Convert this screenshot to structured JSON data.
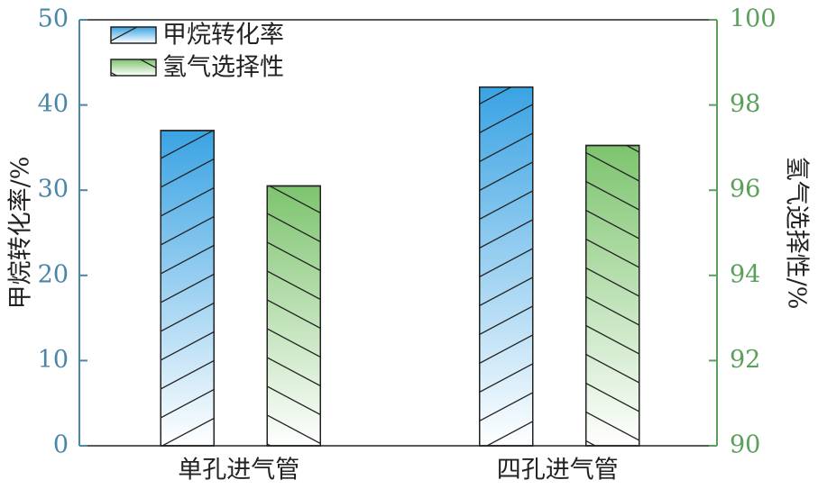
{
  "chart_data": {
    "type": "bar",
    "categories": [
      "单孔进气管",
      "四孔进气管"
    ],
    "series": [
      {
        "name": "甲烷转化率",
        "color": "#3aa3e3",
        "hatch": "/",
        "values": [
          37,
          42.1
        ]
      },
      {
        "name": "氢气选择性",
        "color": "#7dc46e",
        "hatch": "\\",
        "axis": "y2",
        "values": [
          96.1,
          97.05
        ]
      }
    ],
    "ylabel": "甲烷转化率/%",
    "y2label": "氢气选择性/%",
    "ylim": [
      0,
      50
    ],
    "yticks": [
      0,
      10,
      20,
      30,
      40,
      50
    ],
    "y2lim": [
      90,
      100
    ],
    "y2ticks": [
      90,
      92,
      94,
      96,
      98,
      100
    ],
    "ycolor": "#4a86a8",
    "y2color": "#5aa05a",
    "legend": "upper left"
  }
}
